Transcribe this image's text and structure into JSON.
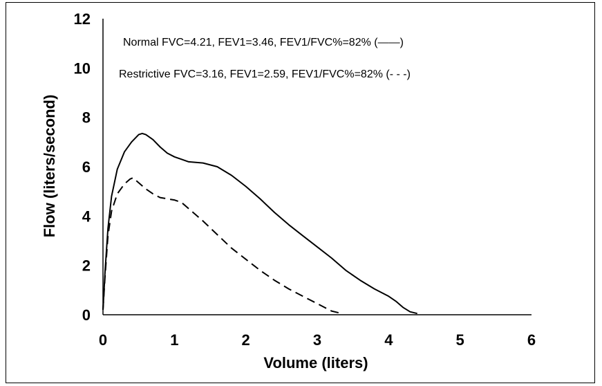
{
  "chart_data": {
    "type": "line",
    "xlabel": "Volume (liters)",
    "ylabel": "Flow (liters/second)",
    "xlim": [
      0,
      6
    ],
    "ylim": [
      0,
      12
    ],
    "x_ticks": [
      "0",
      "1",
      "2",
      "3",
      "4",
      "5",
      "6"
    ],
    "y_ticks": [
      "0",
      "2",
      "4",
      "6",
      "8",
      "10",
      "12"
    ],
    "grid": false,
    "annotations": [
      "Normal    FVC=4.21, FEV1=3.46, FEV1/FVC%=82% (——)",
      "Restrictive FVC=3.16, FEV1=2.59, FEV1/FVC%=82% (- - -)"
    ],
    "series": [
      {
        "name": "Normal",
        "style": "solid",
        "color": "#000000",
        "points": [
          [
            0.0,
            0.2
          ],
          [
            0.03,
            1.8
          ],
          [
            0.07,
            3.5
          ],
          [
            0.12,
            4.8
          ],
          [
            0.2,
            5.9
          ],
          [
            0.3,
            6.6
          ],
          [
            0.4,
            7.0
          ],
          [
            0.5,
            7.3
          ],
          [
            0.55,
            7.35
          ],
          [
            0.6,
            7.3
          ],
          [
            0.7,
            7.1
          ],
          [
            0.8,
            6.8
          ],
          [
            0.9,
            6.55
          ],
          [
            1.0,
            6.4
          ],
          [
            1.1,
            6.3
          ],
          [
            1.2,
            6.2
          ],
          [
            1.4,
            6.15
          ],
          [
            1.6,
            6.0
          ],
          [
            1.8,
            5.65
          ],
          [
            2.0,
            5.2
          ],
          [
            2.2,
            4.7
          ],
          [
            2.4,
            4.15
          ],
          [
            2.6,
            3.65
          ],
          [
            2.8,
            3.2
          ],
          [
            3.0,
            2.75
          ],
          [
            3.2,
            2.3
          ],
          [
            3.4,
            1.8
          ],
          [
            3.6,
            1.4
          ],
          [
            3.8,
            1.05
          ],
          [
            4.0,
            0.75
          ],
          [
            4.1,
            0.55
          ],
          [
            4.2,
            0.3
          ],
          [
            4.3,
            0.12
          ],
          [
            4.4,
            0.05
          ]
        ]
      },
      {
        "name": "Restrictive",
        "style": "dashed",
        "color": "#000000",
        "points": [
          [
            0.0,
            0.2
          ],
          [
            0.03,
            1.6
          ],
          [
            0.07,
            3.2
          ],
          [
            0.12,
            4.2
          ],
          [
            0.2,
            4.9
          ],
          [
            0.3,
            5.3
          ],
          [
            0.38,
            5.5
          ],
          [
            0.42,
            5.55
          ],
          [
            0.5,
            5.35
          ],
          [
            0.6,
            5.1
          ],
          [
            0.7,
            4.9
          ],
          [
            0.8,
            4.75
          ],
          [
            0.9,
            4.7
          ],
          [
            1.0,
            4.65
          ],
          [
            1.1,
            4.55
          ],
          [
            1.2,
            4.3
          ],
          [
            1.4,
            3.8
          ],
          [
            1.6,
            3.25
          ],
          [
            1.8,
            2.7
          ],
          [
            2.0,
            2.25
          ],
          [
            2.2,
            1.8
          ],
          [
            2.4,
            1.4
          ],
          [
            2.6,
            1.05
          ],
          [
            2.8,
            0.75
          ],
          [
            3.0,
            0.45
          ],
          [
            3.1,
            0.3
          ],
          [
            3.2,
            0.15
          ],
          [
            3.3,
            0.08
          ]
        ]
      }
    ]
  }
}
